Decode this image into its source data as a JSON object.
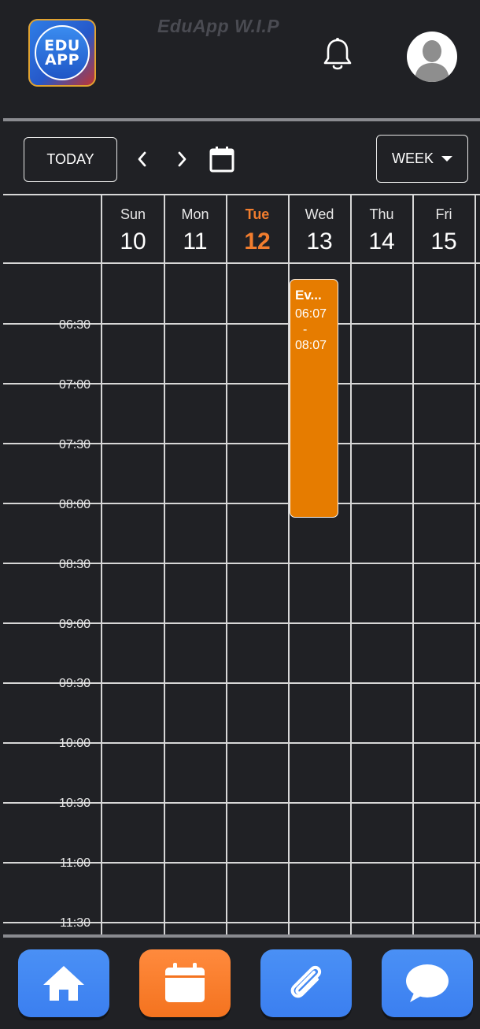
{
  "header": {
    "logo_text_line1": "EDU",
    "logo_text_line2": "APP",
    "app_title": "EduApp W.I.P"
  },
  "toolbar": {
    "today_label": "TODAY",
    "view_label": "WEEK"
  },
  "calendar": {
    "days": [
      {
        "name": "Sun",
        "date": "10"
      },
      {
        "name": "Mon",
        "date": "11"
      },
      {
        "name": "Tue",
        "date": "12"
      },
      {
        "name": "Wed",
        "date": "13"
      },
      {
        "name": "Thu",
        "date": "14"
      },
      {
        "name": "Fri",
        "date": "15"
      }
    ],
    "today_day": "Tue",
    "time_labels": [
      "06:30",
      "07:00",
      "07:30",
      "08:00",
      "08:30",
      "09:00",
      "09:30",
      "10:00",
      "10:30",
      "11:00",
      "11:30"
    ],
    "event": {
      "title": "Ev...",
      "start": "06:07",
      "separator": "-",
      "end": "08:07",
      "day": "Wed"
    }
  },
  "colors": {
    "background": "#202125",
    "accent_orange": "#f27d2e",
    "event_orange": "#e67c00",
    "nav_blue": "#4a90f5"
  },
  "bottom_nav": {
    "items": [
      "home-icon",
      "calendar-icon",
      "paperclip-icon",
      "chat-icon"
    ],
    "active": "calendar-icon"
  }
}
